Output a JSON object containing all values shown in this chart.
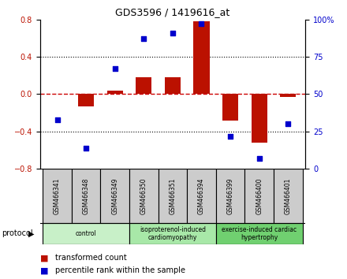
{
  "title": "GDS3596 / 1419616_at",
  "samples": [
    "GSM466341",
    "GSM466348",
    "GSM466349",
    "GSM466350",
    "GSM466351",
    "GSM466394",
    "GSM466399",
    "GSM466400",
    "GSM466401"
  ],
  "transformed_count": [
    0.0,
    -0.13,
    0.04,
    0.18,
    0.18,
    0.78,
    -0.28,
    -0.52,
    -0.03
  ],
  "percentile_rank": [
    33,
    14,
    67,
    87,
    91,
    97,
    22,
    7,
    30
  ],
  "groups": [
    {
      "label": "control",
      "start": 0,
      "end": 3,
      "color": "#c8f0c8"
    },
    {
      "label": "isoproterenol-induced\ncardiomyopathy",
      "start": 3,
      "end": 6,
      "color": "#a8e8a8"
    },
    {
      "label": "exercise-induced cardiac\nhypertrophy",
      "start": 6,
      "end": 9,
      "color": "#70d070"
    }
  ],
  "ylim_left": [
    -0.8,
    0.8
  ],
  "ylim_right": [
    0,
    100
  ],
  "left_ticks": [
    -0.8,
    -0.4,
    0.0,
    0.4,
    0.8
  ],
  "right_ticks": [
    0,
    25,
    50,
    75,
    100
  ],
  "bar_color": "#bb1100",
  "dot_color": "#0000cc",
  "zero_line_color": "#cc0000",
  "sample_box_color": "#cccccc",
  "background_color": "#ffffff"
}
